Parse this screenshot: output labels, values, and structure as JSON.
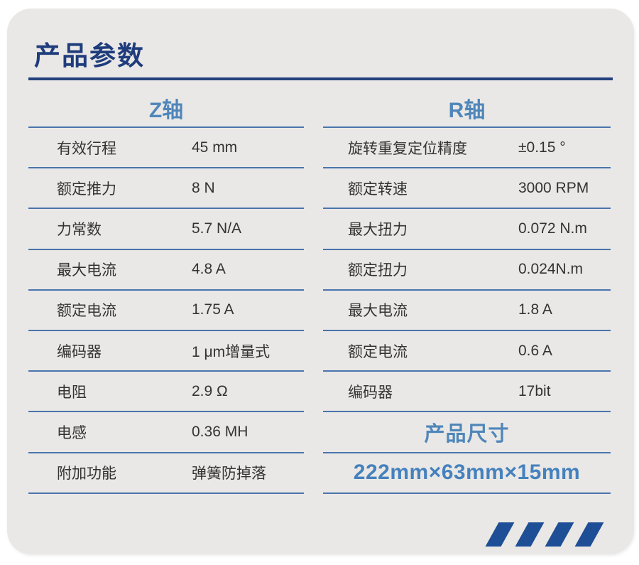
{
  "header": {
    "title": "产品参数"
  },
  "colors": {
    "navy": "#1f3c7c",
    "rule-navy": "#24417e",
    "header-blue": "#4f86ba",
    "line-blue": "#4a74ad",
    "value-blue": "#4581bd",
    "stripe-blue": "#1e4e95",
    "card-bg": "#e9e8e6",
    "text": "#333333"
  },
  "tables": {
    "z_axis": {
      "header": "Z轴",
      "rows": [
        {
          "label": "有效行程",
          "value": "45 mm"
        },
        {
          "label": "额定推力",
          "value": "8 N"
        },
        {
          "label": "力常数",
          "value": "5.7 N/A"
        },
        {
          "label": "最大电流",
          "value": "4.8 A"
        },
        {
          "label": "额定电流",
          "value": "1.75 A"
        },
        {
          "label": "编码器",
          "value": "1 μm增量式"
        },
        {
          "label": "电阻",
          "value": "2.9 Ω"
        },
        {
          "label": "电感",
          "value": "0.36 MH"
        },
        {
          "label": "附加功能",
          "value": "弹簧防掉落"
        }
      ]
    },
    "r_axis": {
      "header": "R轴",
      "rows": [
        {
          "label": "旋转重复定位精度",
          "value": "±0.15 °"
        },
        {
          "label": "额定转速",
          "value": "3000 RPM"
        },
        {
          "label": "最大扭力",
          "value": "0.072 N.m"
        },
        {
          "label": "额定扭力",
          "value": "0.024N.m"
        },
        {
          "label": "最大电流",
          "value": "1.8 A"
        },
        {
          "label": "额定电流",
          "value": "0.6 A"
        },
        {
          "label": "编码器",
          "value": "17bit"
        }
      ],
      "dimensions_header": "产品尺寸",
      "dimensions_value": "222mm×63mm×15mm"
    }
  },
  "decoration": {
    "stripe_count": 4
  }
}
